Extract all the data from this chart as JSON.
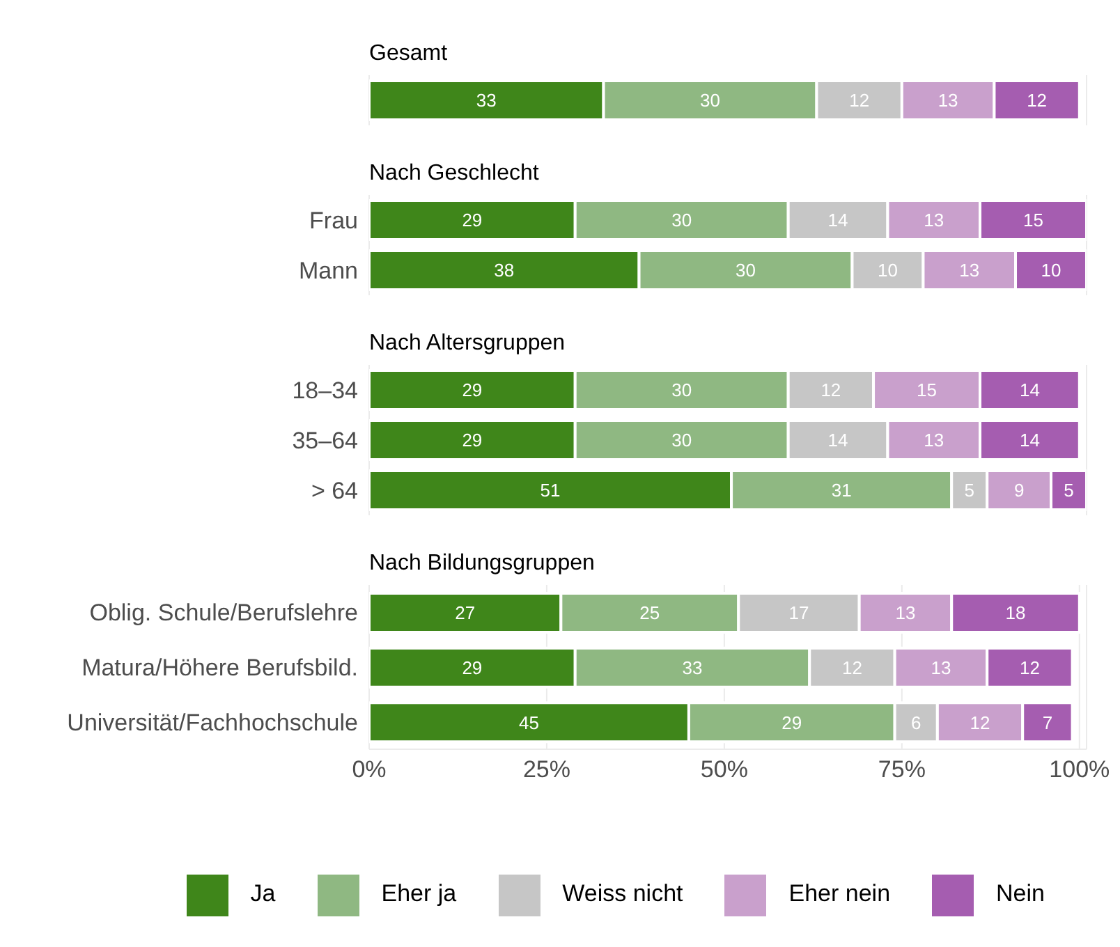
{
  "chart_data": [
    {
      "type": "bar",
      "orientation": "horizontal",
      "stacked": true,
      "title": "Gesamt",
      "categories": [
        null
      ],
      "xlim": [
        0,
        101
      ],
      "xticks": [
        {
          "value": 0,
          "label": null
        },
        {
          "value": 25,
          "label": null
        },
        {
          "value": 50,
          "label": null
        },
        {
          "value": 75,
          "label": null
        },
        {
          "value": 100,
          "label": null
        }
      ],
      "grid": "x",
      "tick_labels": false,
      "data_labels": true,
      "legend": false,
      "series": [
        {
          "color": "#3f861a",
          "values": [
            33
          ]
        },
        {
          "color": "#8fb882",
          "values": [
            30
          ]
        },
        {
          "color": "#c6c6c6",
          "values": [
            12
          ]
        },
        {
          "color": "#c9a0cc",
          "values": [
            13
          ]
        },
        {
          "color": "#a55db0",
          "values": [
            12
          ]
        }
      ]
    },
    {
      "type": "bar",
      "orientation": "horizontal",
      "stacked": true,
      "title": "Nach Geschlecht",
      "categories": [
        "Frau",
        "Mann"
      ],
      "xlim": [
        0,
        101
      ],
      "xticks": [
        {
          "value": 0,
          "label": null
        },
        {
          "value": 25,
          "label": null
        },
        {
          "value": 50,
          "label": null
        },
        {
          "value": 75,
          "label": null
        },
        {
          "value": 100,
          "label": null
        }
      ],
      "grid": "x",
      "tick_labels": "y",
      "data_labels": true,
      "legend": false,
      "series": [
        {
          "color": "#3f861a",
          "values": [
            29,
            38
          ]
        },
        {
          "color": "#8fb882",
          "values": [
            30,
            30
          ]
        },
        {
          "color": "#c6c6c6",
          "values": [
            14,
            10
          ]
        },
        {
          "color": "#c9a0cc",
          "values": [
            13,
            13
          ]
        },
        {
          "color": "#a55db0",
          "values": [
            15,
            10
          ]
        }
      ]
    },
    {
      "type": "bar",
      "orientation": "horizontal",
      "stacked": true,
      "title": "Nach Altersgruppen",
      "categories": [
        "18–34",
        "35–64",
        "> 64"
      ],
      "xlim": [
        0,
        101
      ],
      "xticks": [
        {
          "value": 0,
          "label": null
        },
        {
          "value": 25,
          "label": null
        },
        {
          "value": 50,
          "label": null
        },
        {
          "value": 75,
          "label": null
        },
        {
          "value": 100,
          "label": null
        }
      ],
      "grid": "x",
      "tick_labels": "y",
      "data_labels": true,
      "legend": false,
      "series": [
        {
          "color": "#3f861a",
          "values": [
            29,
            29,
            51
          ]
        },
        {
          "color": "#8fb882",
          "values": [
            30,
            30,
            31
          ]
        },
        {
          "color": "#c6c6c6",
          "values": [
            12,
            14,
            5
          ]
        },
        {
          "color": "#c9a0cc",
          "values": [
            15,
            13,
            9
          ]
        },
        {
          "color": "#a55db0",
          "values": [
            14,
            14,
            5
          ]
        }
      ]
    },
    {
      "type": "bar",
      "orientation": "horizontal",
      "stacked": true,
      "title": "Nach Bildungsgruppen",
      "categories": [
        "Oblig. Schule/Berufslehre",
        "Matura/Höhere Berufsbild.",
        "Universität/Fachhochschule"
      ],
      "xlim": [
        0,
        101
      ],
      "xticks": [
        {
          "value": 0,
          "label": "0%"
        },
        {
          "value": 25,
          "label": "25%"
        },
        {
          "value": 50,
          "label": "50%"
        },
        {
          "value": 75,
          "label": "75%"
        },
        {
          "value": 100,
          "label": "100%"
        }
      ],
      "grid": "x",
      "data_labels": true,
      "legend": "bottom",
      "series": [
        {
          "name": "Ja",
          "color": "#3f861a",
          "values": [
            27,
            29,
            45
          ]
        },
        {
          "name": "Eher ja",
          "color": "#8fb882",
          "values": [
            25,
            33,
            29
          ]
        },
        {
          "name": "Weiss nicht",
          "color": "#c6c6c6",
          "values": [
            17,
            12,
            6
          ]
        },
        {
          "name": "Eher nein",
          "color": "#c9a0cc",
          "values": [
            13,
            13,
            12
          ]
        },
        {
          "name": "Nein",
          "color": "#a55db0",
          "values": [
            18,
            12,
            7
          ]
        }
      ]
    }
  ]
}
